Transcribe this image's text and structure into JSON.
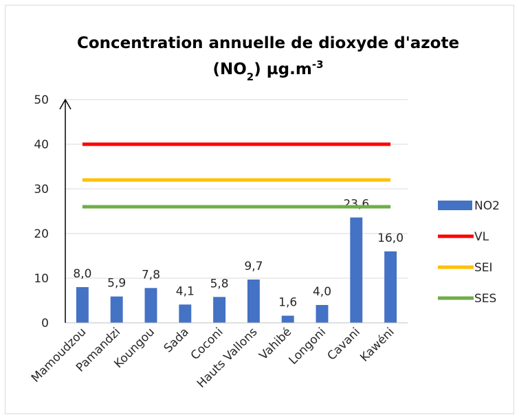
{
  "chart_data": {
    "type": "bar",
    "title": [
      "Concentration annuelle de dioxyde d'azote",
      "(NO",
      "2",
      ") µg.m",
      "-3"
    ],
    "categories": [
      "Mamoudzou",
      "Pamandzi",
      "Koungou",
      "Sada",
      "Coconi",
      "Hauts Vallons",
      "Vahibé",
      "Longoni",
      "Cavani",
      "Kawéni"
    ],
    "series": [
      {
        "name": "NO2",
        "type": "bar",
        "color": "#4472c4",
        "values": [
          8.0,
          5.9,
          7.8,
          4.1,
          5.8,
          9.7,
          1.6,
          4.0,
          23.6,
          16.0
        ],
        "value_labels": [
          "8,0",
          "5,9",
          "7,8",
          "4,1",
          "5,8",
          "9,7",
          "1,6",
          "4,0",
          "23,6",
          "16,0"
        ]
      },
      {
        "name": "VL",
        "type": "line",
        "color": "#ff0000",
        "values": [
          40,
          40,
          40,
          40,
          40,
          40,
          40,
          40,
          40,
          40
        ]
      },
      {
        "name": "SEI",
        "type": "line",
        "color": "#ffc000",
        "values": [
          32,
          32,
          32,
          32,
          32,
          32,
          32,
          32,
          32,
          32
        ]
      },
      {
        "name": "SES",
        "type": "line",
        "color": "#70ad47",
        "values": [
          26,
          26,
          26,
          26,
          26,
          26,
          26,
          26,
          26,
          26
        ]
      }
    ],
    "ylim": [
      0,
      50
    ],
    "yticks": [
      0,
      10,
      20,
      30,
      40,
      50
    ],
    "grid": true,
    "legend": "right"
  }
}
